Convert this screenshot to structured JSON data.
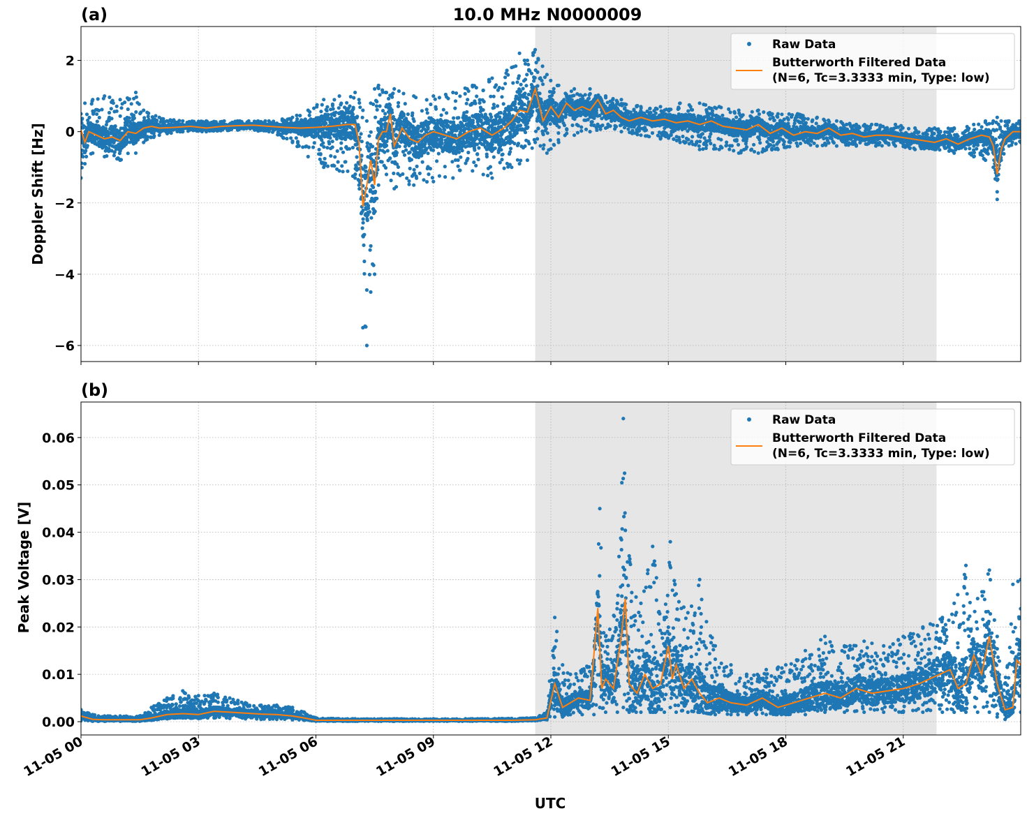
{
  "figure": {
    "title": "10.0 MHz N0000009",
    "xlabel": "UTC",
    "x_ticks": [
      "11-05 00",
      "11-05 03",
      "11-05 06",
      "11-05 09",
      "11-05 12",
      "11-05 15",
      "11-05 18",
      "11-05 21"
    ],
    "colors": {
      "raw": "#1f77b4",
      "filtered": "#ff7f0e",
      "shade": "#e6e6e6"
    }
  },
  "chart_data": [
    {
      "type": "scatter",
      "panel": "(a)",
      "title": "10.0 MHz N0000009",
      "xlabel": "",
      "ylabel": "Doppler Shift [Hz]",
      "xlim": [
        0,
        24
      ],
      "ylim": [
        -6.45,
        2.95
      ],
      "y_ticks": [
        2,
        0,
        -2,
        -4,
        -6
      ],
      "y_tick_labels": [
        "2",
        "0",
        "−2",
        "−4",
        "−6"
      ],
      "x_ticks": [
        0,
        3,
        6,
        9,
        12,
        15,
        18,
        21
      ],
      "shaded_interval": [
        11.6,
        21.85
      ],
      "grid": true,
      "legend_position": "top-right",
      "legend": [
        "Raw Data",
        "Butterworth Filtered Data",
        "(N=6, Tc=3.3333 min, Type: low)"
      ],
      "series": [
        {
          "name": "Butterworth Filtered Data",
          "x": [
            0.0,
            0.1,
            0.2,
            0.4,
            0.6,
            0.8,
            1.0,
            1.2,
            1.4,
            1.6,
            1.8,
            2.0,
            2.4,
            2.8,
            3.2,
            3.6,
            4.0,
            4.4,
            4.8,
            5.2,
            5.6,
            6.0,
            6.4,
            6.8,
            7.0,
            7.1,
            7.2,
            7.3,
            7.4,
            7.5,
            7.6,
            7.7,
            7.8,
            7.9,
            8.0,
            8.2,
            8.4,
            8.6,
            8.8,
            9.0,
            9.3,
            9.6,
            9.9,
            10.2,
            10.5,
            10.8,
            11.0,
            11.2,
            11.4,
            11.6,
            11.8,
            12.0,
            12.2,
            12.4,
            12.6,
            12.8,
            13.0,
            13.2,
            13.4,
            13.6,
            13.8,
            14.0,
            14.3,
            14.6,
            14.9,
            15.2,
            15.5,
            15.8,
            16.1,
            16.4,
            16.7,
            17.0,
            17.3,
            17.6,
            17.9,
            18.2,
            18.5,
            18.8,
            19.1,
            19.4,
            19.7,
            20.0,
            20.3,
            20.6,
            20.9,
            21.2,
            21.5,
            21.8,
            22.1,
            22.4,
            22.7,
            23.0,
            23.2,
            23.3,
            23.4,
            23.5,
            23.6,
            23.8,
            24.0
          ],
          "y": [
            0.05,
            -0.3,
            0.0,
            -0.1,
            -0.2,
            -0.15,
            -0.25,
            0.0,
            -0.05,
            0.1,
            0.15,
            0.1,
            0.12,
            0.15,
            0.1,
            0.15,
            0.17,
            0.18,
            0.15,
            0.12,
            0.1,
            0.12,
            0.15,
            0.2,
            0.2,
            -0.3,
            -2.1,
            -1.5,
            -0.8,
            -1.5,
            -0.2,
            0.0,
            0.0,
            0.5,
            -0.4,
            0.1,
            -0.2,
            -0.3,
            -0.1,
            0.0,
            -0.1,
            -0.2,
            0.0,
            0.1,
            -0.1,
            0.1,
            0.3,
            0.6,
            0.55,
            1.2,
            0.3,
            0.7,
            0.4,
            0.8,
            0.6,
            0.7,
            0.6,
            0.9,
            0.5,
            0.6,
            0.4,
            0.3,
            0.4,
            0.3,
            0.35,
            0.25,
            0.3,
            0.2,
            0.3,
            0.15,
            0.1,
            0.05,
            0.2,
            -0.05,
            0.1,
            -0.1,
            0.0,
            -0.05,
            0.1,
            -0.1,
            -0.05,
            -0.15,
            -0.1,
            -0.1,
            -0.15,
            -0.2,
            -0.25,
            -0.3,
            -0.2,
            -0.35,
            -0.2,
            -0.1,
            -0.15,
            -0.4,
            -1.2,
            -0.5,
            -0.2,
            0.0,
            0.0
          ]
        }
      ],
      "raw_data_envelope": {
        "name": "Raw Data",
        "x": [
          0.0,
          0.1,
          0.3,
          0.6,
          1.0,
          1.4,
          1.6,
          2.0,
          2.6,
          3.2,
          4.0,
          4.8,
          5.4,
          5.8,
          6.2,
          6.6,
          7.0,
          7.1,
          7.2,
          7.3,
          7.4,
          7.5,
          7.6,
          7.8,
          8.0,
          8.5,
          9.0,
          9.5,
          10.0,
          10.5,
          11.0,
          11.2,
          11.4,
          11.6,
          11.9,
          12.2,
          12.6,
          13.0,
          13.4,
          13.8,
          14.3,
          14.8,
          15.3,
          15.8,
          16.3,
          16.8,
          17.3,
          17.8,
          18.3,
          18.8,
          19.3,
          19.8,
          20.3,
          20.8,
          21.3,
          21.8,
          22.3,
          22.8,
          23.1,
          23.3,
          23.4,
          23.5,
          23.7,
          24.0
        ],
        "upper": [
          0.5,
          0.8,
          0.9,
          1.0,
          0.9,
          1.1,
          0.6,
          0.4,
          0.3,
          0.3,
          0.3,
          0.3,
          0.4,
          0.6,
          0.9,
          1.0,
          1.1,
          0.9,
          0.6,
          0.3,
          0.8,
          1.2,
          1.3,
          1.1,
          1.2,
          1.0,
          1.0,
          1.1,
          1.3,
          1.5,
          1.8,
          2.2,
          2.0,
          2.3,
          1.6,
          1.3,
          1.2,
          1.2,
          1.0,
          0.9,
          0.7,
          0.7,
          0.8,
          0.8,
          0.7,
          0.6,
          0.6,
          0.5,
          0.5,
          0.4,
          0.3,
          0.2,
          0.2,
          0.2,
          0.1,
          0.1,
          0.1,
          0.2,
          0.3,
          0.3,
          0.4,
          0.3,
          0.3,
          0.3
        ],
        "lower": [
          -1.3,
          -0.9,
          -0.6,
          -0.7,
          -0.8,
          -0.6,
          -0.3,
          -0.1,
          0.0,
          0.0,
          0.05,
          0.0,
          -0.3,
          -0.7,
          -1.0,
          -1.1,
          -1.3,
          -1.5,
          -5.5,
          -6.0,
          -4.5,
          -4.0,
          -1.5,
          -1.2,
          -1.6,
          -1.5,
          -1.4,
          -1.3,
          -1.1,
          -1.3,
          -1.0,
          -0.9,
          -0.8,
          -0.3,
          -0.6,
          -0.3,
          -0.1,
          0.0,
          0.1,
          0.0,
          -0.1,
          -0.2,
          -0.3,
          -0.5,
          -0.5,
          -0.6,
          -0.6,
          -0.5,
          -0.4,
          -0.4,
          -0.4,
          -0.4,
          -0.4,
          -0.4,
          -0.5,
          -0.5,
          -0.6,
          -0.7,
          -0.8,
          -1.0,
          -1.9,
          -0.8,
          -0.4,
          -0.3
        ]
      }
    },
    {
      "type": "scatter",
      "panel": "(b)",
      "title": "",
      "xlabel": "UTC",
      "ylabel": "Peak Voltage [V]",
      "xlim": [
        0,
        24
      ],
      "ylim": [
        -0.0028,
        0.0675
      ],
      "y_ticks": [
        0.0,
        0.01,
        0.02,
        0.03,
        0.04,
        0.05,
        0.06
      ],
      "y_tick_labels": [
        "0.00",
        "0.01",
        "0.02",
        "0.03",
        "0.04",
        "0.05",
        "0.06"
      ],
      "x_ticks": [
        0,
        3,
        6,
        9,
        12,
        15,
        18,
        21
      ],
      "shaded_interval": [
        11.6,
        21.85
      ],
      "grid": true,
      "legend_position": "top-right",
      "legend": [
        "Raw Data",
        "Butterworth Filtered Data",
        "(N=6, Tc=3.3333 min, Type: low)"
      ],
      "series": [
        {
          "name": "Butterworth Filtered Data",
          "x": [
            0.0,
            0.3,
            0.6,
            1.0,
            1.5,
            1.8,
            2.2,
            2.6,
            3.0,
            3.4,
            3.8,
            4.2,
            4.6,
            5.0,
            5.4,
            5.7,
            6.0,
            7.0,
            8.0,
            9.0,
            10.0,
            11.0,
            11.6,
            11.9,
            12.1,
            12.3,
            12.5,
            12.7,
            13.0,
            13.2,
            13.3,
            13.4,
            13.6,
            13.8,
            13.9,
            14.0,
            14.2,
            14.4,
            14.6,
            14.8,
            15.0,
            15.1,
            15.2,
            15.4,
            15.6,
            15.8,
            16.0,
            16.3,
            16.6,
            17.0,
            17.4,
            17.8,
            18.2,
            18.6,
            19.0,
            19.4,
            19.8,
            20.2,
            20.6,
            21.0,
            21.4,
            21.8,
            22.2,
            22.4,
            22.6,
            22.8,
            23.0,
            23.2,
            23.4,
            23.6,
            23.8,
            23.9,
            24.0
          ],
          "y": [
            0.0012,
            0.0005,
            0.0004,
            0.0004,
            0.0004,
            0.0008,
            0.0015,
            0.0017,
            0.0015,
            0.0022,
            0.002,
            0.0018,
            0.0016,
            0.0015,
            0.0012,
            0.0008,
            0.0003,
            0.0003,
            0.0003,
            0.0003,
            0.0003,
            0.0003,
            0.0004,
            0.0008,
            0.008,
            0.003,
            0.004,
            0.005,
            0.0045,
            0.024,
            0.007,
            0.009,
            0.007,
            0.018,
            0.026,
            0.008,
            0.006,
            0.01,
            0.007,
            0.008,
            0.016,
            0.009,
            0.012,
            0.007,
            0.009,
            0.006,
            0.004,
            0.005,
            0.004,
            0.0035,
            0.005,
            0.003,
            0.004,
            0.005,
            0.006,
            0.005,
            0.007,
            0.006,
            0.0065,
            0.007,
            0.008,
            0.0095,
            0.011,
            0.007,
            0.008,
            0.014,
            0.01,
            0.018,
            0.008,
            0.0025,
            0.003,
            0.013,
            0.012
          ]
        }
      ],
      "raw_data_envelope": {
        "name": "Raw Data",
        "x": [
          0.0,
          0.3,
          0.6,
          1.0,
          1.5,
          1.8,
          2.2,
          2.6,
          3.0,
          3.4,
          3.8,
          4.2,
          4.6,
          5.0,
          5.4,
          5.7,
          6.0,
          7.0,
          8.0,
          9.0,
          10.0,
          11.0,
          11.6,
          11.9,
          12.1,
          12.3,
          12.5,
          12.8,
          13.1,
          13.25,
          13.4,
          13.7,
          13.85,
          14.0,
          14.3,
          14.6,
          14.9,
          15.05,
          15.2,
          15.5,
          15.8,
          16.2,
          16.6,
          17.0,
          17.5,
          18.0,
          18.5,
          19.0,
          19.5,
          20.0,
          20.5,
          21.0,
          21.5,
          22.0,
          22.3,
          22.6,
          22.9,
          23.2,
          23.4,
          23.6,
          23.8,
          24.0
        ],
        "upper": [
          0.0025,
          0.0015,
          0.0012,
          0.0012,
          0.0012,
          0.003,
          0.005,
          0.0065,
          0.0055,
          0.006,
          0.005,
          0.004,
          0.0035,
          0.0035,
          0.003,
          0.002,
          0.0008,
          0.0006,
          0.0006,
          0.0006,
          0.0006,
          0.0007,
          0.0008,
          0.002,
          0.022,
          0.012,
          0.01,
          0.011,
          0.013,
          0.045,
          0.018,
          0.025,
          0.064,
          0.035,
          0.025,
          0.037,
          0.022,
          0.038,
          0.027,
          0.023,
          0.03,
          0.016,
          0.012,
          0.01,
          0.011,
          0.012,
          0.015,
          0.018,
          0.016,
          0.017,
          0.016,
          0.018,
          0.02,
          0.022,
          0.025,
          0.033,
          0.026,
          0.032,
          0.018,
          0.008,
          0.029,
          0.03
        ],
        "lower": [
          0.0002,
          0.0001,
          0.0001,
          0.0001,
          0.0001,
          0.0003,
          0.0006,
          0.0008,
          0.0007,
          0.0008,
          0.0007,
          0.0006,
          0.0005,
          0.0005,
          0.0004,
          0.0003,
          0.0001,
          0.0001,
          0.0001,
          0.0001,
          0.0001,
          0.0001,
          0.0002,
          0.0004,
          0.001,
          0.001,
          0.0015,
          0.0015,
          0.0015,
          0.003,
          0.002,
          0.002,
          0.003,
          0.002,
          0.002,
          0.002,
          0.002,
          0.003,
          0.002,
          0.002,
          0.002,
          0.0015,
          0.0015,
          0.0015,
          0.0015,
          0.0015,
          0.0015,
          0.002,
          0.002,
          0.002,
          0.002,
          0.002,
          0.002,
          0.002,
          0.002,
          0.002,
          0.002,
          0.002,
          0.001,
          0.0005,
          0.002,
          0.002
        ]
      }
    }
  ]
}
